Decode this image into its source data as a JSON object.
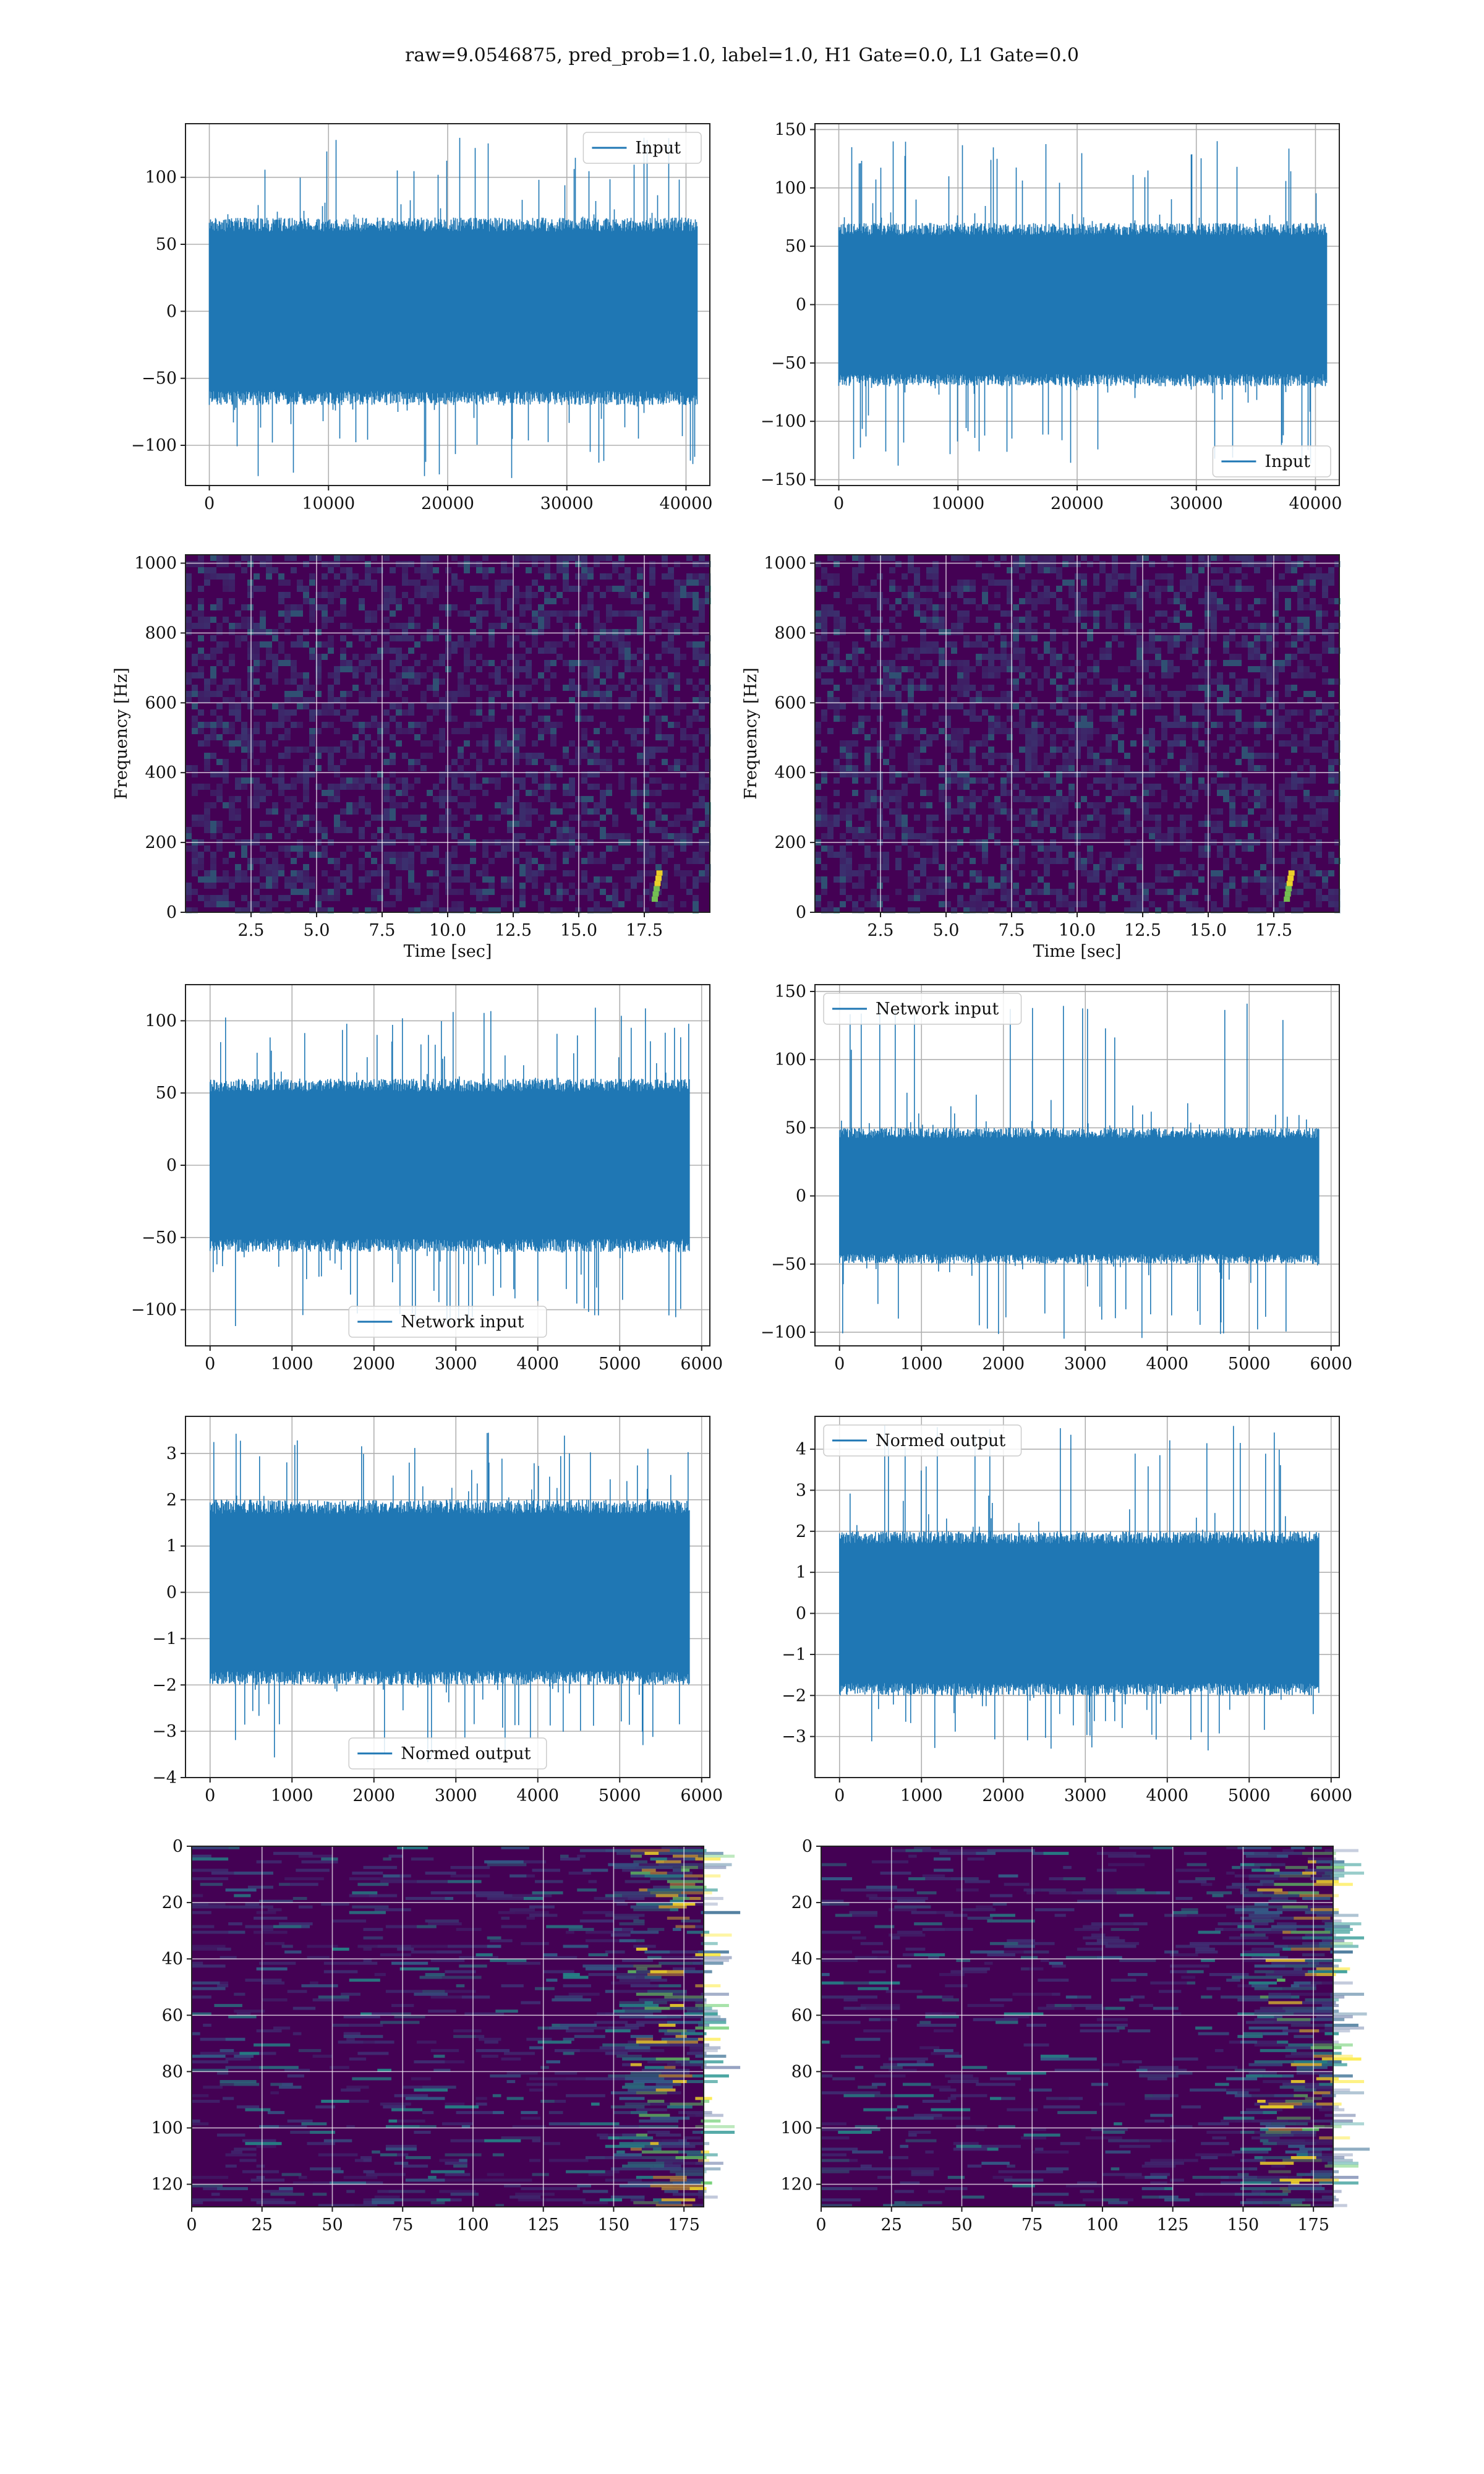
{
  "figure": {
    "title": "raw=9.0546875, pred_prob=1.0, label=1.0, H1 Gate=0.0, L1 Gate=0.0"
  },
  "colors": {
    "series": "#1f77b4",
    "grid": "#b0b0b0",
    "axis": "#222222",
    "viridis_dark": "#440154",
    "viridis_mid": "#31688e",
    "viridis_teal": "#21918c",
    "viridis_bright": "#fde725"
  },
  "chart_data": [
    {
      "id": "input-h1",
      "type": "line",
      "series": [
        {
          "name": "Input"
        }
      ],
      "legend": "upper right",
      "xlim": [
        -2000,
        42000
      ],
      "ylim": [
        -130,
        140
      ],
      "xticks": [
        0,
        10000,
        20000,
        30000,
        40000
      ],
      "yticks": [
        -100,
        -50,
        0,
        50,
        100
      ],
      "n_points": 40960,
      "amplitude": {
        "bulk": [
          -70,
          70
        ],
        "spikes": [
          -125,
          130
        ]
      }
    },
    {
      "id": "input-l1",
      "type": "line",
      "series": [
        {
          "name": "Input"
        }
      ],
      "legend": "lower right",
      "xlim": [
        -2000,
        42000
      ],
      "ylim": [
        -155,
        155
      ],
      "xticks": [
        0,
        10000,
        20000,
        30000,
        40000
      ],
      "yticks": [
        -150,
        -100,
        -50,
        0,
        50,
        100,
        150
      ],
      "n_points": 40960,
      "amplitude": {
        "bulk": [
          -70,
          70
        ],
        "spikes": [
          -140,
          140
        ]
      }
    },
    {
      "id": "spectrogram-h1",
      "type": "heatmap",
      "xlabel": "Time [sec]",
      "ylabel": "Frequency [Hz]",
      "xlim": [
        0,
        20
      ],
      "ylim": [
        0,
        1024
      ],
      "xticks": [
        2.5,
        5.0,
        7.5,
        10.0,
        12.5,
        15.0,
        17.5
      ],
      "xtick_labels": [
        "2.5",
        "5.0",
        "7.5",
        "10.0",
        "12.5",
        "15.0",
        "17.5"
      ],
      "yticks": [
        0,
        200,
        400,
        600,
        800,
        1000
      ],
      "colormap": "viridis",
      "feature": {
        "time_sec": 17.9,
        "freq_hz": [
          30,
          130
        ]
      }
    },
    {
      "id": "spectrogram-l1",
      "type": "heatmap",
      "xlabel": "Time [sec]",
      "ylabel": "Frequency [Hz]",
      "xlim": [
        0,
        20
      ],
      "ylim": [
        0,
        1024
      ],
      "xticks": [
        2.5,
        5.0,
        7.5,
        10.0,
        12.5,
        15.0,
        17.5
      ],
      "xtick_labels": [
        "2.5",
        "5.0",
        "7.5",
        "10.0",
        "12.5",
        "15.0",
        "17.5"
      ],
      "yticks": [
        0,
        200,
        400,
        600,
        800,
        1000
      ],
      "colormap": "viridis",
      "feature": {
        "time_sec": 18.0,
        "freq_hz": [
          30,
          130
        ]
      }
    },
    {
      "id": "network-input-h1",
      "type": "line",
      "series": [
        {
          "name": "Network input"
        }
      ],
      "legend": "lower center",
      "xlim": [
        -300,
        6100
      ],
      "ylim": [
        -125,
        125
      ],
      "xticks": [
        0,
        1000,
        2000,
        3000,
        4000,
        5000,
        6000
      ],
      "yticks": [
        -100,
        -50,
        0,
        50,
        100
      ],
      "n_points": 5850,
      "amplitude": {
        "bulk": [
          -60,
          60
        ],
        "spikes": [
          -112,
          110
        ]
      }
    },
    {
      "id": "network-input-l1",
      "type": "line",
      "series": [
        {
          "name": "Network input"
        }
      ],
      "legend": "upper left",
      "xlim": [
        -300,
        6100
      ],
      "ylim": [
        -110,
        155
      ],
      "xticks": [
        0,
        1000,
        2000,
        3000,
        4000,
        5000,
        6000
      ],
      "yticks": [
        -100,
        -50,
        0,
        50,
        100,
        150
      ],
      "n_points": 5850,
      "amplitude": {
        "bulk": [
          -50,
          50
        ],
        "spikes": [
          -105,
          142
        ]
      }
    },
    {
      "id": "normed-output-h1",
      "type": "line",
      "series": [
        {
          "name": "Normed output"
        }
      ],
      "legend": "lower center",
      "xlim": [
        -300,
        6100
      ],
      "ylim": [
        -4,
        3.8
      ],
      "xticks": [
        0,
        1000,
        2000,
        3000,
        4000,
        5000,
        6000
      ],
      "yticks": [
        -4,
        -3,
        -2,
        -1,
        0,
        1,
        2,
        3
      ],
      "xtick_labels": [
        "0",
        "1000",
        "2000",
        "3000",
        "4000",
        "5000",
        "6000"
      ],
      "ytick_labels": [
        "−4",
        "−3",
        "−2",
        "−1",
        "0",
        "1",
        "2",
        "3"
      ],
      "n_points": 5850,
      "amplitude": {
        "bulk": [
          -2,
          2
        ],
        "spikes": [
          -3.7,
          3.5
        ]
      }
    },
    {
      "id": "normed-output-l1",
      "type": "line",
      "series": [
        {
          "name": "Normed output"
        }
      ],
      "legend": "upper left",
      "xlim": [
        -300,
        6100
      ],
      "ylim": [
        -4,
        4.8
      ],
      "xticks": [
        0,
        1000,
        2000,
        3000,
        4000,
        5000,
        6000
      ],
      "yticks": [
        -3,
        -2,
        -1,
        0,
        1,
        2,
        3,
        4
      ],
      "ytick_labels": [
        "−3",
        "−2",
        "−1",
        "0",
        "1",
        "2",
        "3",
        "4"
      ],
      "n_points": 5850,
      "amplitude": {
        "bulk": [
          -2,
          2
        ],
        "spikes": [
          -3.4,
          4.6
        ]
      }
    },
    {
      "id": "features-h1",
      "type": "heatmap",
      "xlim": [
        0,
        182
      ],
      "ylim": [
        128,
        0
      ],
      "xticks": [
        0,
        25,
        50,
        75,
        100,
        125,
        150,
        175
      ],
      "yticks": [
        0,
        20,
        40,
        60,
        80,
        100,
        120
      ],
      "colormap": "viridis",
      "rows": 128,
      "cols": 182
    },
    {
      "id": "features-l1",
      "type": "heatmap",
      "xlim": [
        0,
        182
      ],
      "ylim": [
        128,
        0
      ],
      "xticks": [
        0,
        25,
        50,
        75,
        100,
        125,
        150,
        175
      ],
      "yticks": [
        0,
        20,
        40,
        60,
        80,
        100,
        120
      ],
      "colormap": "viridis",
      "rows": 128,
      "cols": 182
    }
  ]
}
